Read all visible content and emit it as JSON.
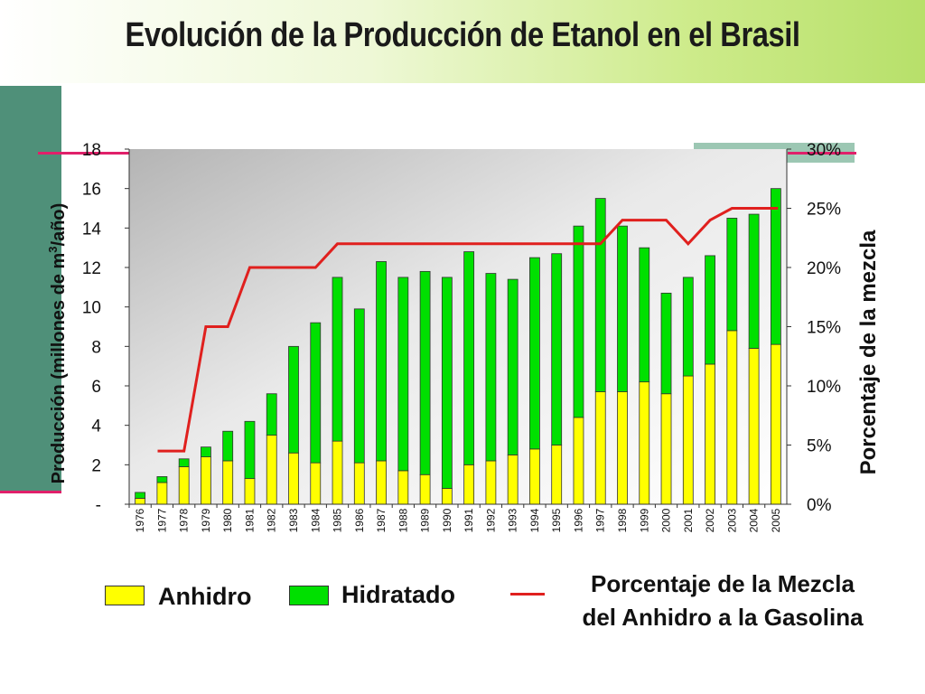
{
  "title": "Evolución de la Producción de Etanol en el Brasil",
  "colors": {
    "anhidro": "#ffff00",
    "hidratado": "#00e000",
    "mezcla_line": "#e0201e",
    "accent_bar": "#e0206a",
    "side_panel": "#4f9079"
  },
  "chart_data": {
    "type": "bar",
    "stacked": true,
    "title": "Evolución de la Producción de Etanol en el Brasil",
    "ylabel_left": "Producción (millones de m³/año)",
    "ylabel_left_parts": [
      "Producción (millones de m",
      "3",
      "/año)"
    ],
    "ylabel_right": "Porcentaje de la mezcla",
    "ylim_left": [
      0,
      18
    ],
    "ylim_right": [
      0,
      0.3
    ],
    "left_ticks": [
      "-",
      "2",
      "4",
      "6",
      "8",
      "10",
      "12",
      "14",
      "16",
      "18"
    ],
    "right_ticks": [
      "0%",
      "5%",
      "10%",
      "15%",
      "20%",
      "25%",
      "30%"
    ],
    "categories": [
      "1976",
      "1977",
      "1978",
      "1979",
      "1980",
      "1981",
      "1982",
      "1983",
      "1984",
      "1985",
      "1986",
      "1987",
      "1988",
      "1989",
      "1990",
      "1991",
      "1992",
      "1993",
      "1994",
      "1995",
      "1996",
      "1997",
      "1998",
      "1999",
      "2000",
      "2001",
      "2002",
      "2003",
      "2004",
      "2005"
    ],
    "series": [
      {
        "name": "Anhidro",
        "values": [
          0.3,
          1.1,
          1.9,
          2.4,
          2.2,
          1.3,
          3.5,
          2.6,
          2.1,
          3.2,
          2.1,
          2.2,
          1.7,
          1.5,
          0.8,
          2.0,
          2.2,
          2.5,
          2.8,
          3.0,
          4.4,
          5.7,
          5.7,
          6.2,
          5.6,
          6.5,
          7.1,
          8.8,
          7.9,
          8.1
        ]
      },
      {
        "name": "Hidratado",
        "values": [
          0.3,
          0.3,
          0.4,
          0.5,
          1.5,
          2.9,
          2.1,
          5.4,
          7.1,
          8.3,
          7.8,
          10.1,
          9.8,
          10.3,
          10.7,
          10.8,
          9.5,
          8.9,
          9.7,
          9.7,
          9.7,
          9.8,
          8.4,
          6.8,
          5.1,
          5.0,
          5.5,
          5.7,
          6.8,
          7.9
        ]
      }
    ],
    "mezcla": {
      "name": "Porcentaje de la Mezcla del Anhidro a la Gasolina",
      "values": [
        null,
        4.5,
        4.5,
        15,
        15,
        20,
        20,
        20,
        20,
        22,
        22,
        22,
        22,
        22,
        22,
        22,
        22,
        22,
        22,
        22,
        22,
        22,
        24,
        24,
        24,
        22,
        24,
        25,
        25,
        25
      ]
    },
    "grid": false,
    "legend_position": "bottom"
  },
  "legend": {
    "anhidro": "Anhidro",
    "hidratado": "Hidratado",
    "mezcla_line1": "Porcentaje de la Mezcla",
    "mezcla_line2": "del Anhidro a la Gasolina"
  }
}
